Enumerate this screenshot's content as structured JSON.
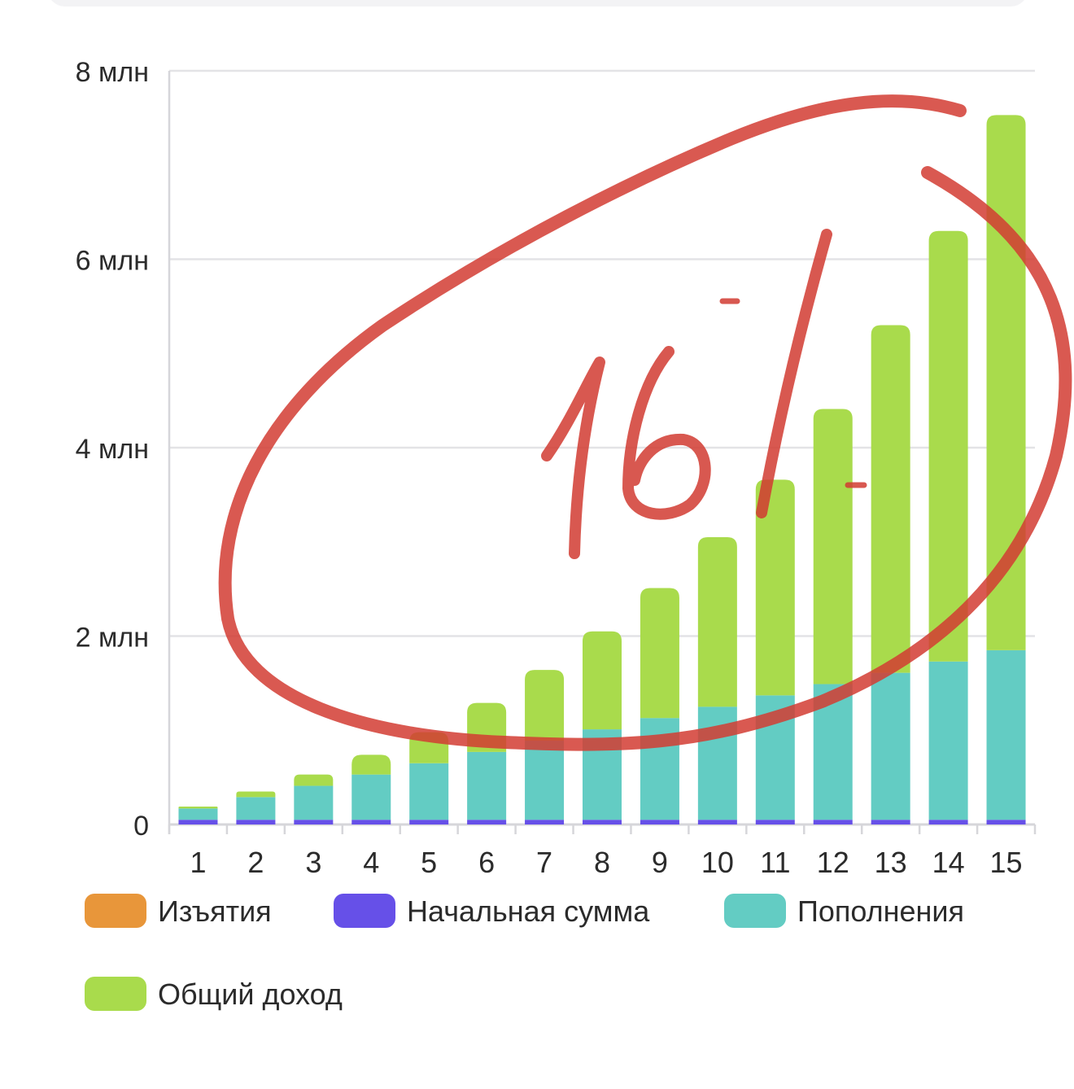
{
  "chart_data": {
    "type": "bar",
    "stacked": true,
    "title": "",
    "xlabel": "",
    "ylabel": "",
    "categories": [
      "1",
      "2",
      "3",
      "4",
      "5",
      "6",
      "7",
      "8",
      "9",
      "10",
      "11",
      "12",
      "13",
      "14",
      "15"
    ],
    "y_ticks": [
      "0",
      "2 млн",
      "4 млн",
      "6 млн",
      "8 млн"
    ],
    "ylim": [
      0,
      8000000
    ],
    "grid": true,
    "legend_position": "bottom",
    "series": [
      {
        "name": "Изъятия",
        "color": "#E8963A",
        "values": [
          0,
          0,
          0,
          0,
          0,
          0,
          0,
          0,
          0,
          0,
          0,
          0,
          0,
          0,
          0
        ]
      },
      {
        "name": "Начальная сумма",
        "color": "#6650E8",
        "values": [
          50000,
          50000,
          50000,
          50000,
          50000,
          50000,
          50000,
          50000,
          50000,
          50000,
          50000,
          50000,
          50000,
          50000,
          50000
        ]
      },
      {
        "name": "Пополнения",
        "color": "#63CCC3",
        "values": [
          120000,
          240000,
          360000,
          480000,
          600000,
          720000,
          840000,
          960000,
          1080000,
          1200000,
          1320000,
          1440000,
          1560000,
          1680000,
          1800000
        ]
      },
      {
        "name": "Общий доход",
        "color": "#A9DB4C",
        "values": [
          20000,
          60000,
          120000,
          210000,
          330000,
          520000,
          750000,
          1040000,
          1380000,
          1800000,
          2290000,
          2920000,
          3690000,
          4570000,
          5680000
        ]
      }
    ]
  },
  "annotation": {
    "text": "16",
    "color": "#D23C32"
  }
}
